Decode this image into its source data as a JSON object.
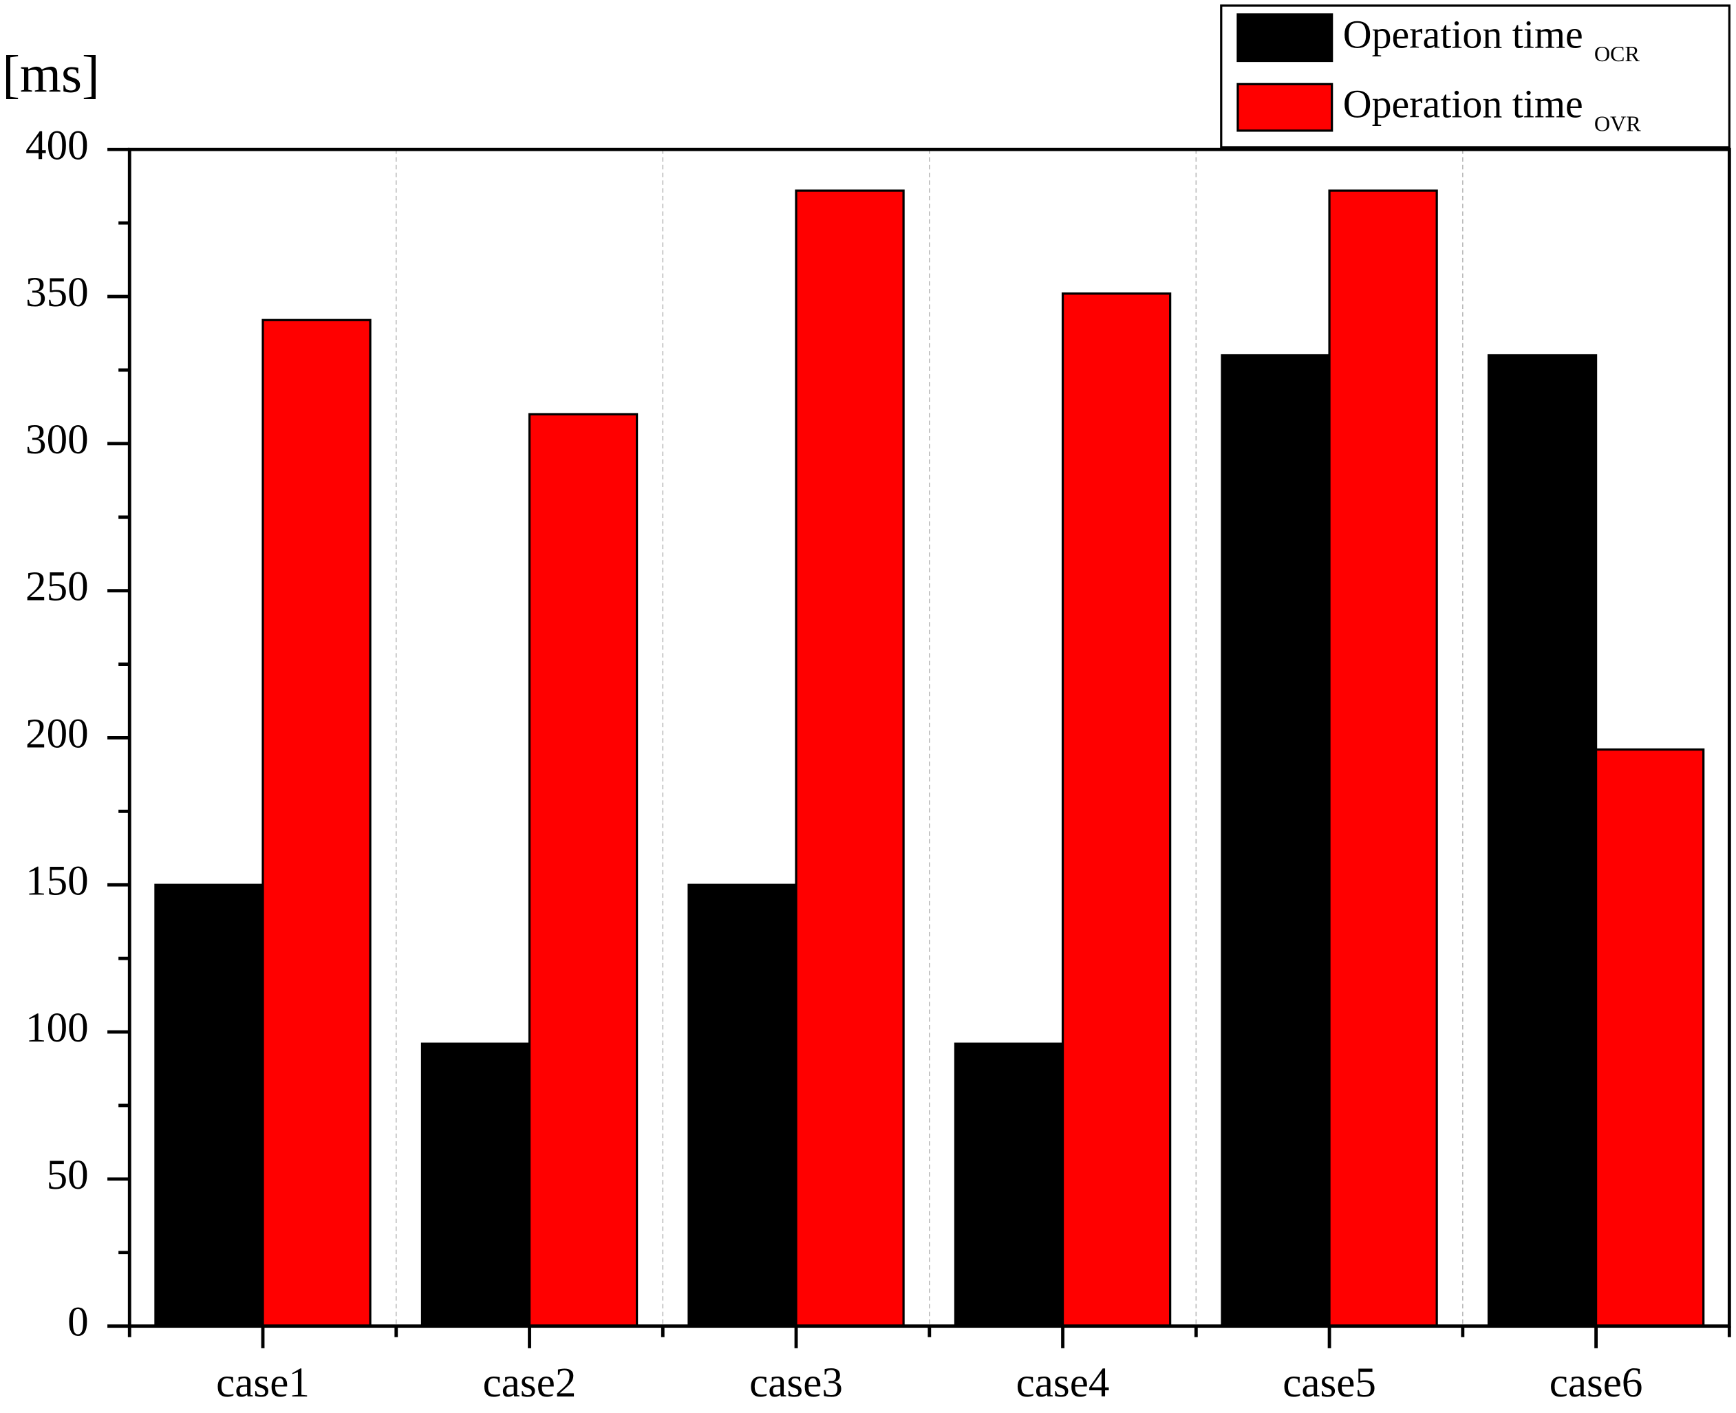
{
  "chart_data": {
    "type": "bar",
    "ylabel": "[ms]",
    "categories": [
      "case1",
      "case2",
      "case3",
      "case4",
      "case5",
      "case6"
    ],
    "series": [
      {
        "name": "Operation time",
        "name_subscript": "OCR",
        "color": "#000000",
        "values": [
          150,
          96,
          150,
          96,
          330,
          330
        ]
      },
      {
        "name": "Operation time",
        "name_subscript": "OVR",
        "color": "#ff0000",
        "values": [
          342,
          310,
          386,
          351,
          386,
          196
        ]
      }
    ],
    "ylim": [
      0,
      400
    ],
    "yticks": [
      0,
      50,
      100,
      150,
      200,
      250,
      300,
      350,
      400
    ],
    "yminorticks": [
      25,
      75,
      125,
      175,
      225,
      275,
      325,
      375
    ],
    "grid": "x-dashed",
    "legend": "top-right"
  }
}
